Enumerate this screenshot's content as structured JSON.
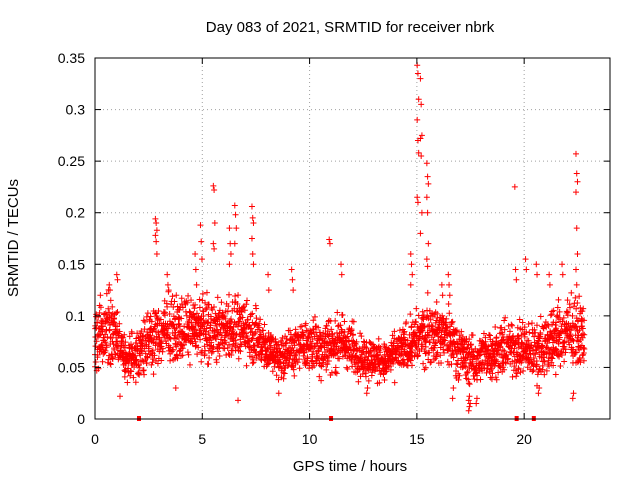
{
  "chart_data": {
    "type": "scatter",
    "title": "Day 083 of 2021, SRMTID for receiver nbrk",
    "xlabel": "GPS time / hours",
    "ylabel": "SRMTID / TECUs",
    "xlim": [
      0,
      24
    ],
    "ylim": [
      0,
      0.35
    ],
    "grid": true,
    "marker": "plus",
    "marker_color": "#ff0000",
    "x_ticks": [
      0,
      5,
      10,
      15,
      20
    ],
    "x_tick_labels": [
      "0",
      "5",
      "10",
      "15",
      "20"
    ],
    "y_ticks": [
      0,
      0.05,
      0.1,
      0.15,
      0.2,
      0.25,
      0.3,
      0.35
    ],
    "y_tick_labels": [
      "0",
      "0.05",
      "0.1",
      "0.15",
      "0.2",
      "0.25",
      "0.3",
      "0.35"
    ],
    "data_gaps_x": [
      2.05,
      11.0,
      19.65,
      20.45
    ],
    "envelope": [
      {
        "x": 0.0,
        "base": 0.075,
        "spread": 0.03
      },
      {
        "x": 0.5,
        "base": 0.085,
        "spread": 0.035
      },
      {
        "x": 1.0,
        "base": 0.08,
        "spread": 0.03
      },
      {
        "x": 1.5,
        "base": 0.055,
        "spread": 0.02
      },
      {
        "x": 2.5,
        "base": 0.075,
        "spread": 0.03
      },
      {
        "x": 3.5,
        "base": 0.085,
        "spread": 0.035
      },
      {
        "x": 4.5,
        "base": 0.09,
        "spread": 0.03
      },
      {
        "x": 5.5,
        "base": 0.085,
        "spread": 0.035
      },
      {
        "x": 6.5,
        "base": 0.09,
        "spread": 0.035
      },
      {
        "x": 7.5,
        "base": 0.08,
        "spread": 0.03
      },
      {
        "x": 8.5,
        "base": 0.06,
        "spread": 0.025
      },
      {
        "x": 9.5,
        "base": 0.07,
        "spread": 0.025
      },
      {
        "x": 10.5,
        "base": 0.07,
        "spread": 0.03
      },
      {
        "x": 11.5,
        "base": 0.075,
        "spread": 0.03
      },
      {
        "x": 12.5,
        "base": 0.06,
        "spread": 0.025
      },
      {
        "x": 13.5,
        "base": 0.055,
        "spread": 0.02
      },
      {
        "x": 14.5,
        "base": 0.07,
        "spread": 0.025
      },
      {
        "x": 15.5,
        "base": 0.085,
        "spread": 0.035
      },
      {
        "x": 16.5,
        "base": 0.08,
        "spread": 0.03
      },
      {
        "x": 17.5,
        "base": 0.055,
        "spread": 0.025
      },
      {
        "x": 18.5,
        "base": 0.065,
        "spread": 0.025
      },
      {
        "x": 19.5,
        "base": 0.07,
        "spread": 0.03
      },
      {
        "x": 20.5,
        "base": 0.065,
        "spread": 0.03
      },
      {
        "x": 21.5,
        "base": 0.08,
        "spread": 0.035
      },
      {
        "x": 22.8,
        "base": 0.085,
        "spread": 0.035
      }
    ],
    "spikes": [
      {
        "x": 0.25,
        "values": [
          0.11,
          0.12,
          0.095
        ]
      },
      {
        "x": 0.7,
        "values": [
          0.13,
          0.125,
          0.115
        ]
      },
      {
        "x": 1.05,
        "values": [
          0.14,
          0.135
        ]
      },
      {
        "x": 2.85,
        "values": [
          0.194,
          0.19,
          0.183,
          0.178,
          0.172,
          0.16
        ]
      },
      {
        "x": 3.4,
        "values": [
          0.14,
          0.13,
          0.125
        ]
      },
      {
        "x": 4.7,
        "values": [
          0.16,
          0.145,
          0.13
        ]
      },
      {
        "x": 4.95,
        "values": [
          0.188,
          0.172,
          0.155
        ]
      },
      {
        "x": 5.55,
        "values": [
          0.226,
          0.222,
          0.19,
          0.17,
          0.165
        ]
      },
      {
        "x": 6.3,
        "values": [
          0.185,
          0.17,
          0.16,
          0.15
        ]
      },
      {
        "x": 6.55,
        "values": [
          0.207,
          0.198,
          0.185,
          0.17
        ]
      },
      {
        "x": 7.35,
        "values": [
          0.206,
          0.195,
          0.19,
          0.175,
          0.16,
          0.15
        ]
      },
      {
        "x": 8.1,
        "values": [
          0.14,
          0.125
        ]
      },
      {
        "x": 9.2,
        "values": [
          0.145,
          0.135,
          0.125
        ]
      },
      {
        "x": 10.95,
        "values": [
          0.174,
          0.17
        ]
      },
      {
        "x": 11.5,
        "values": [
          0.15,
          0.14
        ]
      },
      {
        "x": 14.75,
        "values": [
          0.16,
          0.15,
          0.14,
          0.13
        ]
      },
      {
        "x": 15.05,
        "values": [
          0.343,
          0.335,
          0.31,
          0.29,
          0.27,
          0.258,
          0.215,
          0.21
        ]
      },
      {
        "x": 15.2,
        "values": [
          0.33,
          0.305,
          0.275,
          0.272,
          0.255,
          0.2,
          0.18
        ]
      },
      {
        "x": 15.5,
        "values": [
          0.248,
          0.235,
          0.228,
          0.215,
          0.2,
          0.17,
          0.155,
          0.148
        ]
      },
      {
        "x": 16.2,
        "values": [
          0.13,
          0.12
        ]
      },
      {
        "x": 16.5,
        "values": [
          0.14,
          0.13,
          0.12
        ]
      },
      {
        "x": 19.6,
        "values": [
          0.225,
          0.145,
          0.135
        ]
      },
      {
        "x": 20.1,
        "values": [
          0.155,
          0.145
        ]
      },
      {
        "x": 20.6,
        "values": [
          0.15,
          0.14
        ]
      },
      {
        "x": 21.2,
        "values": [
          0.14,
          0.13
        ]
      },
      {
        "x": 21.8,
        "values": [
          0.15,
          0.14
        ]
      },
      {
        "x": 22.45,
        "values": [
          0.257,
          0.238,
          0.23,
          0.22,
          0.185,
          0.16,
          0.145,
          0.13
        ]
      }
    ],
    "dips": [
      {
        "x": 1.2,
        "values": [
          0.022
        ]
      },
      {
        "x": 3.8,
        "values": [
          0.03
        ]
      },
      {
        "x": 6.7,
        "values": [
          0.018
        ]
      },
      {
        "x": 8.6,
        "values": [
          0.025
        ]
      },
      {
        "x": 12.7,
        "values": [
          0.025,
          0.03
        ]
      },
      {
        "x": 16.7,
        "values": [
          0.02,
          0.03
        ]
      },
      {
        "x": 17.45,
        "values": [
          0.008,
          0.012,
          0.015,
          0.018,
          0.022
        ]
      },
      {
        "x": 17.8,
        "values": [
          0.015,
          0.02
        ]
      },
      {
        "x": 20.7,
        "values": [
          0.025,
          0.03
        ]
      },
      {
        "x": 22.3,
        "values": [
          0.02,
          0.025
        ]
      }
    ]
  }
}
